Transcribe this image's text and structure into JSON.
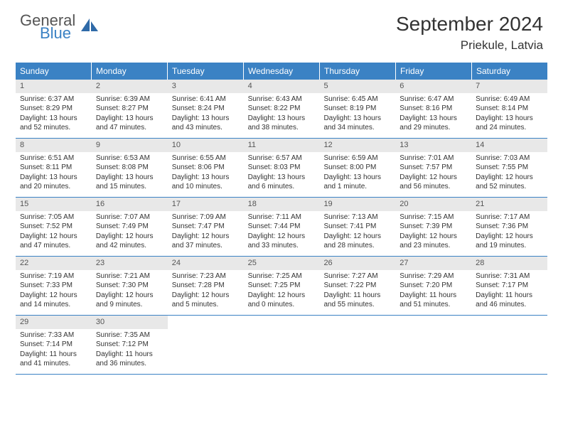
{
  "brand": {
    "line1": "General",
    "line2": "Blue",
    "color_general": "#555555",
    "color_blue": "#3b82c4",
    "icon_color": "#2f6aa8"
  },
  "title": "September 2024",
  "location": "Priekule, Latvia",
  "colors": {
    "header_bg": "#3b82c4",
    "header_text": "#ffffff",
    "daynum_bg": "#e8e8e8",
    "daynum_text": "#555555",
    "body_text": "#333333",
    "row_border": "#3b82c4"
  },
  "day_headers": [
    "Sunday",
    "Monday",
    "Tuesday",
    "Wednesday",
    "Thursday",
    "Friday",
    "Saturday"
  ],
  "weeks": [
    [
      {
        "num": "1",
        "sunrise": "Sunrise: 6:37 AM",
        "sunset": "Sunset: 8:29 PM",
        "daylight": "Daylight: 13 hours and 52 minutes."
      },
      {
        "num": "2",
        "sunrise": "Sunrise: 6:39 AM",
        "sunset": "Sunset: 8:27 PM",
        "daylight": "Daylight: 13 hours and 47 minutes."
      },
      {
        "num": "3",
        "sunrise": "Sunrise: 6:41 AM",
        "sunset": "Sunset: 8:24 PM",
        "daylight": "Daylight: 13 hours and 43 minutes."
      },
      {
        "num": "4",
        "sunrise": "Sunrise: 6:43 AM",
        "sunset": "Sunset: 8:22 PM",
        "daylight": "Daylight: 13 hours and 38 minutes."
      },
      {
        "num": "5",
        "sunrise": "Sunrise: 6:45 AM",
        "sunset": "Sunset: 8:19 PM",
        "daylight": "Daylight: 13 hours and 34 minutes."
      },
      {
        "num": "6",
        "sunrise": "Sunrise: 6:47 AM",
        "sunset": "Sunset: 8:16 PM",
        "daylight": "Daylight: 13 hours and 29 minutes."
      },
      {
        "num": "7",
        "sunrise": "Sunrise: 6:49 AM",
        "sunset": "Sunset: 8:14 PM",
        "daylight": "Daylight: 13 hours and 24 minutes."
      }
    ],
    [
      {
        "num": "8",
        "sunrise": "Sunrise: 6:51 AM",
        "sunset": "Sunset: 8:11 PM",
        "daylight": "Daylight: 13 hours and 20 minutes."
      },
      {
        "num": "9",
        "sunrise": "Sunrise: 6:53 AM",
        "sunset": "Sunset: 8:08 PM",
        "daylight": "Daylight: 13 hours and 15 minutes."
      },
      {
        "num": "10",
        "sunrise": "Sunrise: 6:55 AM",
        "sunset": "Sunset: 8:06 PM",
        "daylight": "Daylight: 13 hours and 10 minutes."
      },
      {
        "num": "11",
        "sunrise": "Sunrise: 6:57 AM",
        "sunset": "Sunset: 8:03 PM",
        "daylight": "Daylight: 13 hours and 6 minutes."
      },
      {
        "num": "12",
        "sunrise": "Sunrise: 6:59 AM",
        "sunset": "Sunset: 8:00 PM",
        "daylight": "Daylight: 13 hours and 1 minute."
      },
      {
        "num": "13",
        "sunrise": "Sunrise: 7:01 AM",
        "sunset": "Sunset: 7:57 PM",
        "daylight": "Daylight: 12 hours and 56 minutes."
      },
      {
        "num": "14",
        "sunrise": "Sunrise: 7:03 AM",
        "sunset": "Sunset: 7:55 PM",
        "daylight": "Daylight: 12 hours and 52 minutes."
      }
    ],
    [
      {
        "num": "15",
        "sunrise": "Sunrise: 7:05 AM",
        "sunset": "Sunset: 7:52 PM",
        "daylight": "Daylight: 12 hours and 47 minutes."
      },
      {
        "num": "16",
        "sunrise": "Sunrise: 7:07 AM",
        "sunset": "Sunset: 7:49 PM",
        "daylight": "Daylight: 12 hours and 42 minutes."
      },
      {
        "num": "17",
        "sunrise": "Sunrise: 7:09 AM",
        "sunset": "Sunset: 7:47 PM",
        "daylight": "Daylight: 12 hours and 37 minutes."
      },
      {
        "num": "18",
        "sunrise": "Sunrise: 7:11 AM",
        "sunset": "Sunset: 7:44 PM",
        "daylight": "Daylight: 12 hours and 33 minutes."
      },
      {
        "num": "19",
        "sunrise": "Sunrise: 7:13 AM",
        "sunset": "Sunset: 7:41 PM",
        "daylight": "Daylight: 12 hours and 28 minutes."
      },
      {
        "num": "20",
        "sunrise": "Sunrise: 7:15 AM",
        "sunset": "Sunset: 7:39 PM",
        "daylight": "Daylight: 12 hours and 23 minutes."
      },
      {
        "num": "21",
        "sunrise": "Sunrise: 7:17 AM",
        "sunset": "Sunset: 7:36 PM",
        "daylight": "Daylight: 12 hours and 19 minutes."
      }
    ],
    [
      {
        "num": "22",
        "sunrise": "Sunrise: 7:19 AM",
        "sunset": "Sunset: 7:33 PM",
        "daylight": "Daylight: 12 hours and 14 minutes."
      },
      {
        "num": "23",
        "sunrise": "Sunrise: 7:21 AM",
        "sunset": "Sunset: 7:30 PM",
        "daylight": "Daylight: 12 hours and 9 minutes."
      },
      {
        "num": "24",
        "sunrise": "Sunrise: 7:23 AM",
        "sunset": "Sunset: 7:28 PM",
        "daylight": "Daylight: 12 hours and 5 minutes."
      },
      {
        "num": "25",
        "sunrise": "Sunrise: 7:25 AM",
        "sunset": "Sunset: 7:25 PM",
        "daylight": "Daylight: 12 hours and 0 minutes."
      },
      {
        "num": "26",
        "sunrise": "Sunrise: 7:27 AM",
        "sunset": "Sunset: 7:22 PM",
        "daylight": "Daylight: 11 hours and 55 minutes."
      },
      {
        "num": "27",
        "sunrise": "Sunrise: 7:29 AM",
        "sunset": "Sunset: 7:20 PM",
        "daylight": "Daylight: 11 hours and 51 minutes."
      },
      {
        "num": "28",
        "sunrise": "Sunrise: 7:31 AM",
        "sunset": "Sunset: 7:17 PM",
        "daylight": "Daylight: 11 hours and 46 minutes."
      }
    ],
    [
      {
        "num": "29",
        "sunrise": "Sunrise: 7:33 AM",
        "sunset": "Sunset: 7:14 PM",
        "daylight": "Daylight: 11 hours and 41 minutes."
      },
      {
        "num": "30",
        "sunrise": "Sunrise: 7:35 AM",
        "sunset": "Sunset: 7:12 PM",
        "daylight": "Daylight: 11 hours and 36 minutes."
      },
      {
        "empty": true
      },
      {
        "empty": true
      },
      {
        "empty": true
      },
      {
        "empty": true
      },
      {
        "empty": true
      }
    ]
  ]
}
